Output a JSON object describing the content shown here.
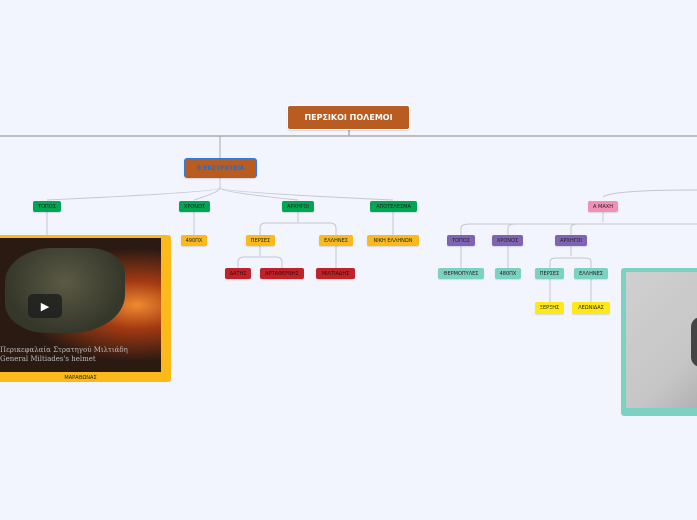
{
  "root": {
    "label": "ΠΕΡΣΙΚΟΙ ΠΟΛΕΜΟΙ"
  },
  "b_campaign": {
    "label": "Β ΕΚΣΤΡΑΤΕΙΑ",
    "topos": "ΤΟΠΟΣ",
    "chronos": "ΧΡΟΝΟΣ",
    "archigoi": "ΑΡΧΗΓΟΙ",
    "apotelesma": "ΑΠΟΤΕΛΕΣΜΑ",
    "year": "490ΠΧ",
    "perses": "ΠΕΡΣΕΣ",
    "ellines": "ΕΛΛΗΝΕΣ",
    "result": "ΝΙΚΗ ΕΛΛΗΝΩΝ",
    "datis": "ΔΑΤΗΣ",
    "artafernis": "ΑΡΤΑΦΕΡΝΗΣ",
    "miltiadis": "ΜΙΛΤΙΑΔΗΣ",
    "video": {
      "caption_gr": "Περικεφαλαία Στρατηγού Μιλτιάδη",
      "caption_en": "General Miltiades's helmet",
      "label": "ΜΑΡΑΘΩΝΑΣ",
      "icon": "play-icon"
    }
  },
  "a_battle": {
    "label": "Α ΜΑΧΗ",
    "topos": "ΤΟΠΟΣ",
    "chronos": "ΧΡΟΝΟΣ",
    "archigoi": "ΑΡΧΗΓΟΙ",
    "place": "ΘΕΡΜΟΠΥΛΕΣ",
    "year": "480ΠΧ",
    "perses": "ΠΕΡΣΕΣ",
    "ellines": "ΕΛΛΗΝΕΣ",
    "xerxis": "ΞΕΡΞΗΣ",
    "leonidas": "ΛΕΩΝΙΔΑΣ"
  },
  "colors": {
    "root": "#b85c22",
    "level1": "#00a651",
    "level2": "#fbb91a",
    "level3": "#c0222a",
    "a_battle": "#f28fb5",
    "purple": "#7f64b4",
    "teal": "#7dd1c3",
    "yellow": "#ffe817"
  }
}
